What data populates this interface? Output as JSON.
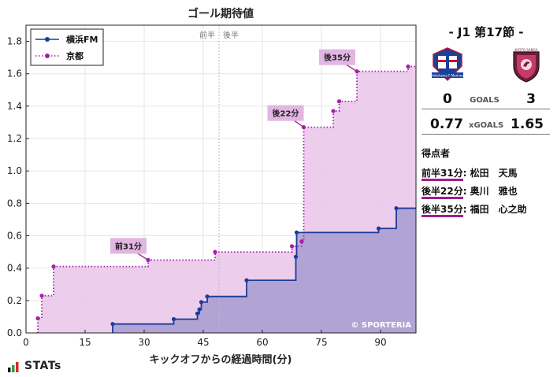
{
  "chart_data": {
    "type": "line",
    "title": "ゴール期待値",
    "xlabel": "キックオフからの経過時間(分)",
    "ylabel": "",
    "xlim": [
      0,
      99
    ],
    "ylim": [
      0,
      1.9
    ],
    "xticks": [
      0,
      15,
      30,
      45,
      60,
      75,
      90
    ],
    "yticks": [
      0.0,
      0.2,
      0.4,
      0.6,
      0.8,
      1.0,
      1.2,
      1.4,
      1.6,
      1.8
    ],
    "grid": true,
    "step": true,
    "legend_position": "top-left",
    "halftime_labels": [
      "前半",
      "後半"
    ],
    "halftime_x": 49,
    "watermark": "© SPORTERIA",
    "series": [
      {
        "name": "横浜FM",
        "color": "#1f3a9a",
        "fill": "#a79bcf",
        "line_style": "solid",
        "x": [
          22,
          37.5,
          43.5,
          44,
          44.5,
          46,
          56,
          68.5,
          68.7,
          89.5,
          94,
          99
        ],
        "y": [
          0.055,
          0.085,
          0.12,
          0.145,
          0.19,
          0.225,
          0.325,
          0.47,
          0.62,
          0.645,
          0.77,
          0.77
        ]
      },
      {
        "name": "京都",
        "color": "#a61eae",
        "fill": "#e9c4e9",
        "line_style": "dotted",
        "x": [
          3,
          4,
          7,
          31,
          48,
          67.5,
          70,
          70.5,
          78,
          79.5,
          84,
          97,
          99
        ],
        "y": [
          0.09,
          0.23,
          0.41,
          0.45,
          0.5,
          0.535,
          0.565,
          1.27,
          1.37,
          1.43,
          1.615,
          1.645,
          1.645
        ]
      }
    ],
    "annotations": [
      {
        "text": "前31分",
        "x": 31,
        "y": 0.45
      },
      {
        "text": "後22分",
        "x": 70.5,
        "y": 1.27
      },
      {
        "text": "後35分",
        "x": 84,
        "y": 1.615
      }
    ]
  },
  "match": {
    "title": "- J1 第17節 -",
    "home_score": "0",
    "away_score": "3",
    "goals_label": "GOALS",
    "home_xg": "0.77",
    "away_xg": "1.65",
    "xg_label": "xGOALS",
    "home_crest_text": "Yokohama F·Marinos",
    "away_crest_text": "KYOTO SANGA"
  },
  "scorers": {
    "heading": "得点者",
    "items": [
      {
        "time": "前半31分",
        "name": ": 松田　天馬"
      },
      {
        "time": "後半22分",
        "name": ": 奥川　雅也"
      },
      {
        "time": "後半35分",
        "name": ": 福田　心之助"
      }
    ]
  },
  "brand": {
    "logo_text": "STATs"
  }
}
